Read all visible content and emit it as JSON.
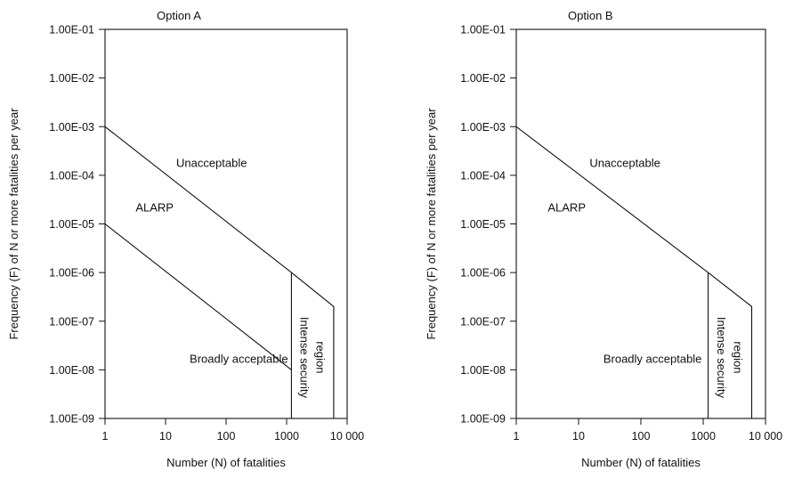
{
  "colors": {
    "ink": "#111111",
    "background": "#ffffff"
  },
  "chart_data": [
    {
      "type": "line",
      "title": "Option A",
      "xlabel": "Number (N) of fatalities",
      "ylabel": "Frequency (F) of N or more fatalities per year",
      "x_scale": "log",
      "y_scale": "log",
      "xlim": [
        1,
        10000
      ],
      "ylim": [
        1e-09,
        0.1
      ],
      "grid": false,
      "x_ticks": [
        {
          "value": 1,
          "label": "1"
        },
        {
          "value": 10,
          "label": "10"
        },
        {
          "value": 100,
          "label": "100"
        },
        {
          "value": 1000,
          "label": "1000"
        },
        {
          "value": 10000,
          "label": "10 000"
        }
      ],
      "y_ticks": [
        {
          "value": 0.1,
          "label": "1.00E-01"
        },
        {
          "value": 0.01,
          "label": "1.00E-02"
        },
        {
          "value": 0.001,
          "label": "1.00E-03"
        },
        {
          "value": 0.0001,
          "label": "1.00E-04"
        },
        {
          "value": 1e-05,
          "label": "1.00E-05"
        },
        {
          "value": 1e-06,
          "label": "1.00E-06"
        },
        {
          "value": 1e-07,
          "label": "1.00E-07"
        },
        {
          "value": 1e-08,
          "label": "1.00E-08"
        },
        {
          "value": 1e-09,
          "label": "1.00E-09"
        }
      ],
      "series": [
        {
          "points": [
            [
              1,
              0.001
            ],
            [
              1200,
              1e-06
            ],
            [
              6000,
              2e-07
            ],
            [
              6000,
              1e-09
            ]
          ]
        },
        {
          "points": [
            [
              1,
              1e-05
            ],
            [
              1200,
              1e-08
            ]
          ]
        },
        {
          "points": [
            [
              1200,
              1e-06
            ],
            [
              1200,
              1e-09
            ]
          ]
        }
      ],
      "annotations": [
        {
          "text": "Unacceptable",
          "x": 15,
          "y": 0.00015
        },
        {
          "text": "ALARP",
          "x": 3.2,
          "y": 1.8e-05
        },
        {
          "text": "Broadly acceptable",
          "x": 25,
          "y": 1.4e-08
        },
        {
          "text": "Intense security",
          "x": 1700,
          "y": 1.8e-08,
          "rotation": 90
        },
        {
          "text": "region",
          "x": 3100,
          "y": 1.8e-08,
          "rotation": 90
        }
      ]
    },
    {
      "type": "line",
      "title": "Option B",
      "xlabel": "Number (N) of fatalities",
      "ylabel": "Frequency (F) of N or more fatalities per year",
      "x_scale": "log",
      "y_scale": "log",
      "xlim": [
        1,
        10000
      ],
      "ylim": [
        1e-09,
        0.1
      ],
      "grid": false,
      "x_ticks": [
        {
          "value": 1,
          "label": "1"
        },
        {
          "value": 10,
          "label": "10"
        },
        {
          "value": 100,
          "label": "100"
        },
        {
          "value": 1000,
          "label": "1000"
        },
        {
          "value": 10000,
          "label": "10 000"
        }
      ],
      "y_ticks": [
        {
          "value": 0.1,
          "label": "1.00E-01"
        },
        {
          "value": 0.01,
          "label": "1.00E-02"
        },
        {
          "value": 0.001,
          "label": "1.00E-03"
        },
        {
          "value": 0.0001,
          "label": "1.00E-04"
        },
        {
          "value": 1e-05,
          "label": "1.00E-05"
        },
        {
          "value": 1e-06,
          "label": "1.00E-06"
        },
        {
          "value": 1e-07,
          "label": "1.00E-07"
        },
        {
          "value": 1e-08,
          "label": "1.00E-08"
        },
        {
          "value": 1e-09,
          "label": "1.00E-09"
        }
      ],
      "series": [
        {
          "points": [
            [
              1,
              0.001
            ],
            [
              1200,
              1e-06
            ],
            [
              6000,
              2e-07
            ],
            [
              6000,
              1e-09
            ]
          ]
        },
        {
          "points": [
            [
              1200,
              1e-06
            ],
            [
              1200,
              1e-09
            ]
          ]
        }
      ],
      "annotations": [
        {
          "text": "Unacceptable",
          "x": 15,
          "y": 0.00015
        },
        {
          "text": "ALARP",
          "x": 3.2,
          "y": 1.8e-05
        },
        {
          "text": "Broadly acceptable",
          "x": 25,
          "y": 1.4e-08
        },
        {
          "text": "Intense security",
          "x": 1700,
          "y": 1.8e-08,
          "rotation": 90
        },
        {
          "text": "region",
          "x": 3100,
          "y": 1.8e-08,
          "rotation": 90
        }
      ]
    }
  ]
}
